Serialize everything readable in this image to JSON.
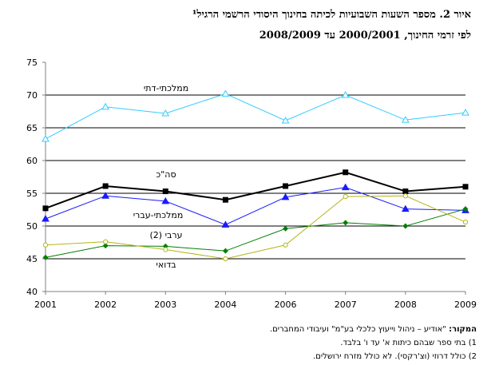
{
  "header": {
    "title": "איור 2. מספר השעות השבועיות לכיתה בחינוך היסודי הרשמי הרגיל¹",
    "subtitle": "לפי זרמי החינוך, 2000/2001 עד 2008/2009"
  },
  "chart_data": {
    "type": "line",
    "title": "איור 2. מספר השעות השבועיות לכיתה בחינוך היסודי הרשמי הרגיל¹",
    "subtitle": "לפי זרמי החינוך, 2000/2001 עד 2008/2009",
    "xlabel": "",
    "ylabel": "",
    "categories": [
      "2001",
      "2002",
      "2003",
      "2004",
      "2006",
      "2007",
      "2008",
      "2009"
    ],
    "ylim": [
      40,
      75
    ],
    "yticks": [
      "40",
      "45",
      "50",
      "55",
      "60",
      "65",
      "70",
      "75"
    ],
    "grid": "horizontal lines at 45, 50, 55, 60, 65, 70",
    "series": [
      {
        "name": "ממלכתי-דתי",
        "color": "#33ccff",
        "marker": "triangle-open",
        "values": [
          63.3,
          68.2,
          67.2,
          70.2,
          66.1,
          70.0,
          66.2,
          67.3
        ]
      },
      {
        "name": "סה\"כ",
        "color": "#000000",
        "marker": "square",
        "values": [
          52.7,
          56.1,
          55.3,
          54.0,
          56.1,
          58.2,
          55.3,
          56.0
        ]
      },
      {
        "name": "ממלכתי-עברי",
        "color": "#1a1aff",
        "marker": "triangle",
        "values": [
          51.1,
          54.6,
          53.8,
          50.2,
          54.4,
          55.9,
          52.6,
          52.4
        ]
      },
      {
        "name": "ערבי (2)",
        "color": "#008000",
        "marker": "diamond",
        "values": [
          45.2,
          47.0,
          46.9,
          46.2,
          49.6,
          50.5,
          50.0,
          52.6
        ]
      },
      {
        "name": "בדואי",
        "color": "#b5b51a",
        "marker": "circle-open",
        "values": [
          47.1,
          47.6,
          46.4,
          45.0,
          47.1,
          54.5,
          54.6,
          50.6
        ]
      }
    ]
  },
  "notes": {
    "source_label": "המקור:",
    "source_text": "\"אודיע – ניהול וייעוץ כלכלי בע\"מ\" ועיבודי המחברים.",
    "note1": "1) בתי ספר שבהם כיתות א' עד ו' בלבד.",
    "note2": "2) כולל דרוזי (וצ'רקסי). לא כולל מזרח ירושלים."
  }
}
